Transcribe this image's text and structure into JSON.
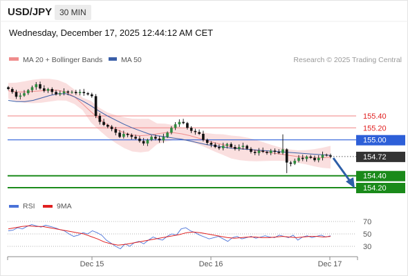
{
  "header": {
    "symbol": "USD/JPY",
    "timeframe": "30 MIN",
    "datetime": "Wednesday, December 17, 2025 12:44:12 AM CET"
  },
  "legend": {
    "items": [
      {
        "label": "MA 20 + Bollinger Bands",
        "color": "#f08c8c"
      },
      {
        "label": "MA 50",
        "color": "#3a5fa8"
      }
    ],
    "credit": "Research © 2025 Trading Central"
  },
  "rsi_legend": {
    "items": [
      {
        "label": "RSI",
        "color": "#4a72d8"
      },
      {
        "label": "9MA",
        "color": "#e02020"
      }
    ]
  },
  "chart_data": [
    {
      "type": "candlestick",
      "title": "USD/JPY 30 MIN",
      "x_ticks": [
        "Dec 15",
        "Dec 16",
        "Dec 17"
      ],
      "ylim": [
        154.1,
        156.05
      ],
      "levels": [
        {
          "value": 155.4,
          "label": "155.40",
          "kind": "resistance"
        },
        {
          "value": 155.2,
          "label": "155.20",
          "kind": "resistance"
        },
        {
          "value": 155.0,
          "label": "155.00",
          "kind": "pivot"
        },
        {
          "value": 154.4,
          "label": "154.40",
          "kind": "support"
        },
        {
          "value": 154.2,
          "label": "154.20",
          "kind": "support"
        }
      ],
      "last_price": {
        "value": 154.72,
        "label": "154.72"
      },
      "close_series": [
        155.85,
        155.8,
        155.72,
        155.74,
        155.78,
        155.83,
        155.88,
        155.93,
        155.86,
        155.82,
        155.85,
        155.8,
        155.76,
        155.78,
        155.81,
        155.79,
        155.8,
        155.78,
        155.8,
        155.78,
        155.76,
        155.73,
        155.4,
        155.3,
        155.25,
        155.22,
        155.18,
        155.12,
        155.05,
        155.1,
        155.08,
        155.05,
        155.02,
        154.98,
        154.94,
        155.0,
        155.05,
        155.02,
        154.99,
        155.05,
        155.12,
        155.2,
        155.26,
        155.3,
        155.28,
        155.2,
        155.15,
        155.13,
        155.1,
        155.0,
        154.95,
        154.92,
        154.88,
        154.86,
        154.9,
        154.93,
        154.88,
        154.85,
        154.88,
        154.9,
        154.85,
        154.8,
        154.78,
        154.82,
        154.8,
        154.78,
        154.82,
        154.8,
        154.78,
        154.84,
        154.62,
        154.6,
        154.65,
        154.7,
        154.68,
        154.72,
        154.7,
        154.66,
        154.7,
        154.75,
        154.74,
        154.72
      ],
      "series": [
        {
          "name": "MA 20 + Bollinger Bands",
          "values": [
            155.82,
            155.8,
            155.8,
            155.81,
            155.82,
            155.83,
            155.83,
            155.8,
            155.72,
            155.6,
            155.47,
            155.35,
            155.25,
            155.18,
            155.12,
            155.08,
            155.07,
            155.08,
            155.1,
            155.12,
            155.12,
            155.1,
            155.07,
            155.03,
            154.99,
            154.95,
            154.92,
            154.88,
            154.86,
            154.84,
            154.82,
            154.8,
            154.78,
            154.76,
            154.74,
            154.72,
            154.71,
            154.7,
            154.7,
            154.71
          ]
        },
        {
          "name": "MA 50",
          "values": [
            155.66,
            155.64,
            155.64,
            155.66,
            155.7,
            155.74,
            155.77,
            155.77,
            155.72,
            155.65,
            155.57,
            155.48,
            155.4,
            155.33,
            155.26,
            155.2,
            155.15,
            155.1,
            155.07,
            155.05,
            155.03,
            155.01,
            154.98,
            154.95,
            154.92,
            154.9,
            154.88,
            154.86,
            154.85,
            154.84,
            154.83,
            154.82,
            154.81,
            154.8,
            154.79,
            154.78,
            154.77,
            154.76,
            154.75,
            154.74
          ]
        }
      ],
      "grid": false
    },
    {
      "type": "line",
      "title": "RSI",
      "ylim": [
        20,
        80
      ],
      "y_ticks": [
        "70",
        "50",
        "30"
      ],
      "series": [
        {
          "name": "RSI",
          "values": [
            55,
            56,
            60,
            58,
            62,
            65,
            63,
            61,
            64,
            62,
            60,
            57,
            55,
            50,
            46,
            48,
            52,
            50,
            55,
            52,
            48,
            40,
            35,
            30,
            26,
            34,
            30,
            36,
            38,
            34,
            40,
            45,
            42,
            40,
            46,
            50,
            48,
            58,
            60,
            55,
            52,
            48,
            45,
            42,
            44,
            46,
            42,
            38,
            44,
            46,
            42,
            44,
            46,
            43,
            45,
            47,
            45,
            44,
            48,
            46,
            44,
            48,
            40,
            45,
            47,
            44,
            46,
            48,
            45,
            47
          ]
        },
        {
          "name": "9MA",
          "values": [
            58,
            60,
            62,
            63,
            62,
            62,
            60,
            58,
            56,
            54,
            52,
            50,
            46,
            42,
            37,
            34,
            32,
            33,
            35,
            37,
            39,
            41,
            43,
            45,
            47,
            49,
            52,
            53,
            52,
            50,
            48,
            46,
            44,
            43,
            44,
            45,
            45,
            44,
            44,
            45,
            46,
            45,
            44,
            45,
            46,
            46,
            45,
            46
          ]
        }
      ],
      "grid": true
    }
  ]
}
